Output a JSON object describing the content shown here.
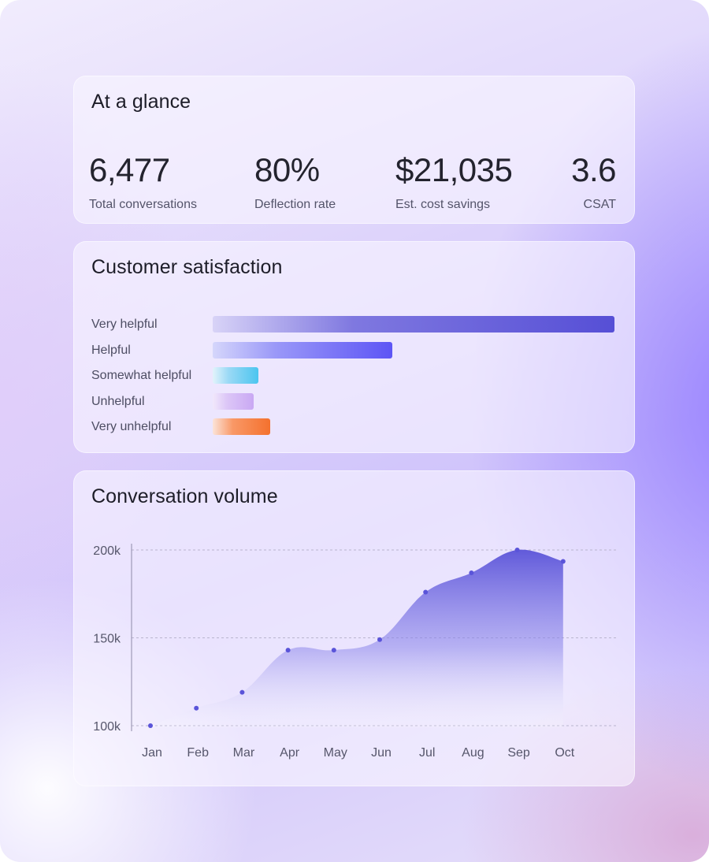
{
  "glance": {
    "title": "At a glance",
    "metrics": [
      {
        "value": "6,477",
        "label": "Total conversations"
      },
      {
        "value": "80%",
        "label": "Deflection rate"
      },
      {
        "value": "$21,035",
        "label": "Est. cost savings"
      },
      {
        "value": "3.6",
        "label": "CSAT"
      }
    ]
  },
  "csat": {
    "title": "Customer satisfaction",
    "chart_data": {
      "type": "bar",
      "orientation": "horizontal",
      "categories": [
        "Very helpful",
        "Helpful",
        "Somewhat helpful",
        "Unhelpful",
        "Very unhelpful"
      ],
      "values": [
        100,
        44.7,
        11.3,
        10.2,
        14.3
      ],
      "bar_colors": [
        [
          "#d8d3f7",
          "#7f78e0",
          "#564fd6"
        ],
        [
          "#d5d6fb",
          "#9a98f8",
          "#5d55f5"
        ],
        [
          "#e2f3fb",
          "#9ad9f5",
          "#4cc5ef"
        ],
        [
          "#f1e8fb",
          "#dcc6f7",
          "#c9a8f3"
        ],
        [
          "#fbe3d8",
          "#f99866",
          "#f4712e"
        ]
      ]
    }
  },
  "volume": {
    "title": "Conversation volume",
    "chart_data": {
      "type": "area",
      "categories": [
        "Jan",
        "Feb",
        "Mar",
        "Apr",
        "May",
        "Jun",
        "Jul",
        "Aug",
        "Sep",
        "Oct"
      ],
      "values": [
        100000,
        110000,
        119000,
        143000,
        143000,
        149000,
        176000,
        187000,
        200000,
        193500
      ],
      "ylim": [
        100000,
        200000
      ],
      "yticks": [
        {
          "value": 100000,
          "label": "100k"
        },
        {
          "value": 150000,
          "label": "150k"
        },
        {
          "value": 200000,
          "label": "200k"
        }
      ],
      "grid": true,
      "line_color": "#5a54d9"
    }
  }
}
